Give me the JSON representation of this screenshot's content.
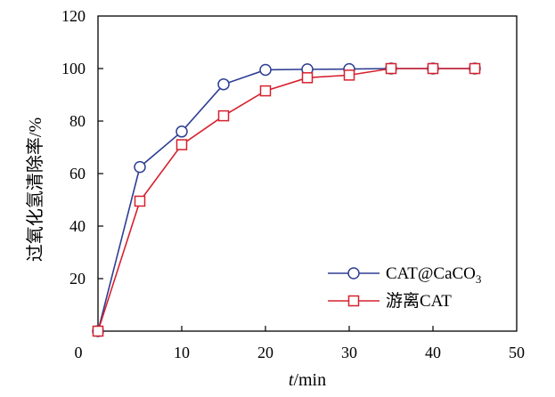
{
  "chart_data": {
    "type": "line",
    "xlabel": "t/min",
    "xlabel_italic_part": "t",
    "xlabel_rest": "/min",
    "ylabel": "过氧化氢清除率/%",
    "xlim": [
      0,
      50
    ],
    "ylim": [
      0,
      120
    ],
    "x_ticks": [
      "0",
      "10",
      "20",
      "30",
      "40",
      "50"
    ],
    "y_ticks": [
      "20",
      "40",
      "60",
      "80",
      "100",
      "120"
    ],
    "x_tick_values": [
      0,
      10,
      20,
      30,
      40,
      50
    ],
    "y_tick_values": [
      20,
      40,
      60,
      80,
      100,
      120
    ],
    "grid": false,
    "legend_position": "bottom-right",
    "series": [
      {
        "name": "CAT@CaCO3",
        "name_main": "CAT@CaCO",
        "name_sub": "3",
        "marker": "circle",
        "color": "#2e3e92",
        "x": [
          0,
          5,
          10,
          15,
          20,
          25,
          30,
          35,
          40,
          45
        ],
        "y": [
          0,
          62.5,
          76,
          94,
          99.5,
          99.7,
          99.8,
          100,
          100,
          100
        ]
      },
      {
        "name": "游离CAT",
        "marker": "square",
        "color": "#d6202d",
        "x": [
          0,
          5,
          10,
          15,
          20,
          25,
          30,
          35,
          40,
          45
        ],
        "y": [
          0,
          49.5,
          71,
          82,
          91.5,
          96.5,
          97.5,
          100,
          100,
          100
        ]
      }
    ]
  }
}
